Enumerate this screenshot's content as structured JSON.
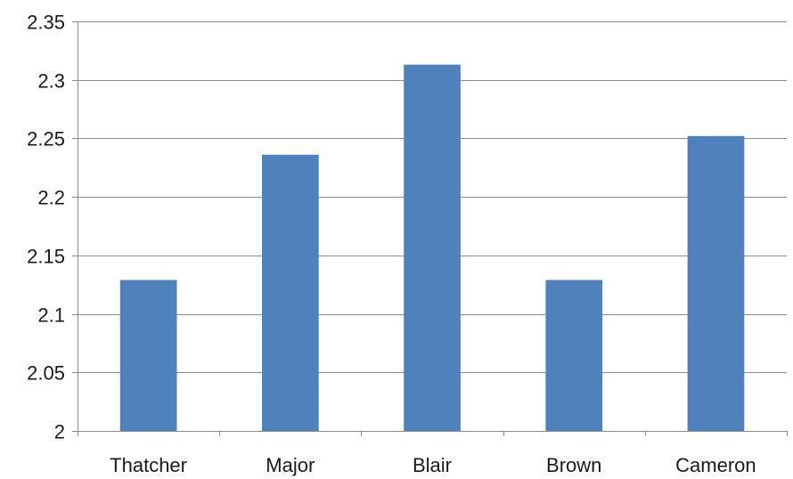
{
  "chart_data": {
    "type": "bar",
    "categories": [
      "Thatcher",
      "Major",
      "Blair",
      "Brown",
      "Cameron"
    ],
    "values": [
      2.129,
      2.236,
      2.313,
      2.129,
      2.252
    ],
    "ylim": [
      2,
      2.35
    ],
    "yticks": [
      "2",
      "2.05",
      "2.1",
      "2.15",
      "2.2",
      "2.25",
      "2.3",
      "2.35"
    ],
    "grid": true,
    "legend": "none",
    "colors": {
      "bar": "#4f81bd",
      "grid": "#8c8c8c",
      "text": "#1a1a1a"
    }
  }
}
